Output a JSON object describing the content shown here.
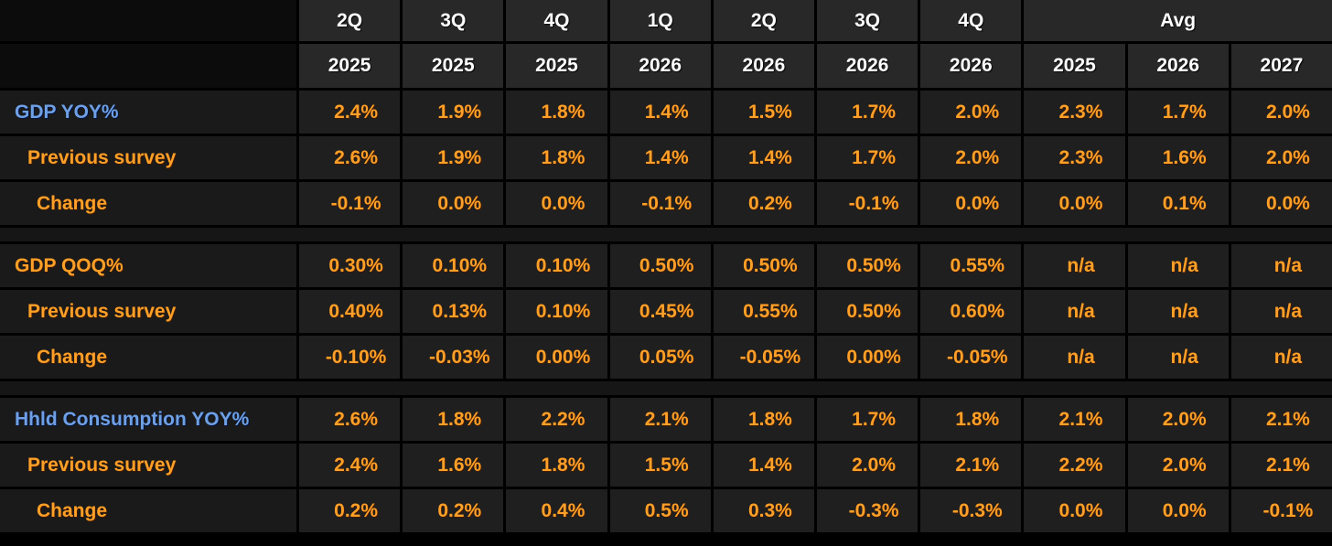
{
  "table": {
    "colors": {
      "orange": "#ffa028",
      "blue": "#6fa0e4",
      "header_text": "#ffffff",
      "cell_background": "#1f1f1f",
      "page_background": "#000000"
    },
    "header": {
      "quarters": [
        "2Q",
        "3Q",
        "4Q",
        "1Q",
        "2Q",
        "3Q",
        "4Q"
      ],
      "avg_label": "Avg",
      "years": [
        "2025",
        "2025",
        "2025",
        "2026",
        "2026",
        "2026",
        "2026",
        "2025",
        "2026",
        "2027"
      ]
    },
    "sections": [
      {
        "rows": [
          {
            "label": "GDP YOY%",
            "label_color": "blue",
            "indent": 0,
            "values": [
              "2.4%",
              "1.9%",
              "1.8%",
              "1.4%",
              "1.5%",
              "1.7%",
              "2.0%",
              "2.3%",
              "1.7%",
              "2.0%"
            ]
          },
          {
            "label": "Previous survey",
            "label_color": "orange",
            "indent": 1,
            "values": [
              "2.6%",
              "1.9%",
              "1.8%",
              "1.4%",
              "1.4%",
              "1.7%",
              "2.0%",
              "2.3%",
              "1.6%",
              "2.0%"
            ]
          },
          {
            "label": "Change",
            "label_color": "orange",
            "indent": 2,
            "values": [
              "-0.1%",
              "0.0%",
              "0.0%",
              "-0.1%",
              "0.2%",
              "-0.1%",
              "0.0%",
              "0.0%",
              "0.1%",
              "0.0%"
            ]
          }
        ]
      },
      {
        "rows": [
          {
            "label": "GDP QOQ%",
            "label_color": "orange",
            "indent": 0,
            "values": [
              "0.30%",
              "0.10%",
              "0.10%",
              "0.50%",
              "0.50%",
              "0.50%",
              "0.55%",
              "n/a",
              "n/a",
              "n/a"
            ]
          },
          {
            "label": "Previous survey",
            "label_color": "orange",
            "indent": 1,
            "values": [
              "0.40%",
              "0.13%",
              "0.10%",
              "0.45%",
              "0.55%",
              "0.50%",
              "0.60%",
              "n/a",
              "n/a",
              "n/a"
            ]
          },
          {
            "label": "Change",
            "label_color": "orange",
            "indent": 2,
            "values": [
              "-0.10%",
              "-0.03%",
              "0.00%",
              "0.05%",
              "-0.05%",
              "0.00%",
              "-0.05%",
              "n/a",
              "n/a",
              "n/a"
            ]
          }
        ]
      },
      {
        "rows": [
          {
            "label": "Hhld Consumption YOY%",
            "label_color": "blue",
            "indent": 0,
            "values": [
              "2.6%",
              "1.8%",
              "2.2%",
              "2.1%",
              "1.8%",
              "1.7%",
              "1.8%",
              "2.1%",
              "2.0%",
              "2.1%"
            ]
          },
          {
            "label": "Previous survey",
            "label_color": "orange",
            "indent": 1,
            "values": [
              "2.4%",
              "1.6%",
              "1.8%",
              "1.5%",
              "1.4%",
              "2.0%",
              "2.1%",
              "2.2%",
              "2.0%",
              "2.1%"
            ]
          },
          {
            "label": "Change",
            "label_color": "orange",
            "indent": 2,
            "values": [
              "0.2%",
              "0.2%",
              "0.4%",
              "0.5%",
              "0.3%",
              "-0.3%",
              "-0.3%",
              "0.0%",
              "0.0%",
              "-0.1%"
            ]
          }
        ]
      }
    ]
  }
}
